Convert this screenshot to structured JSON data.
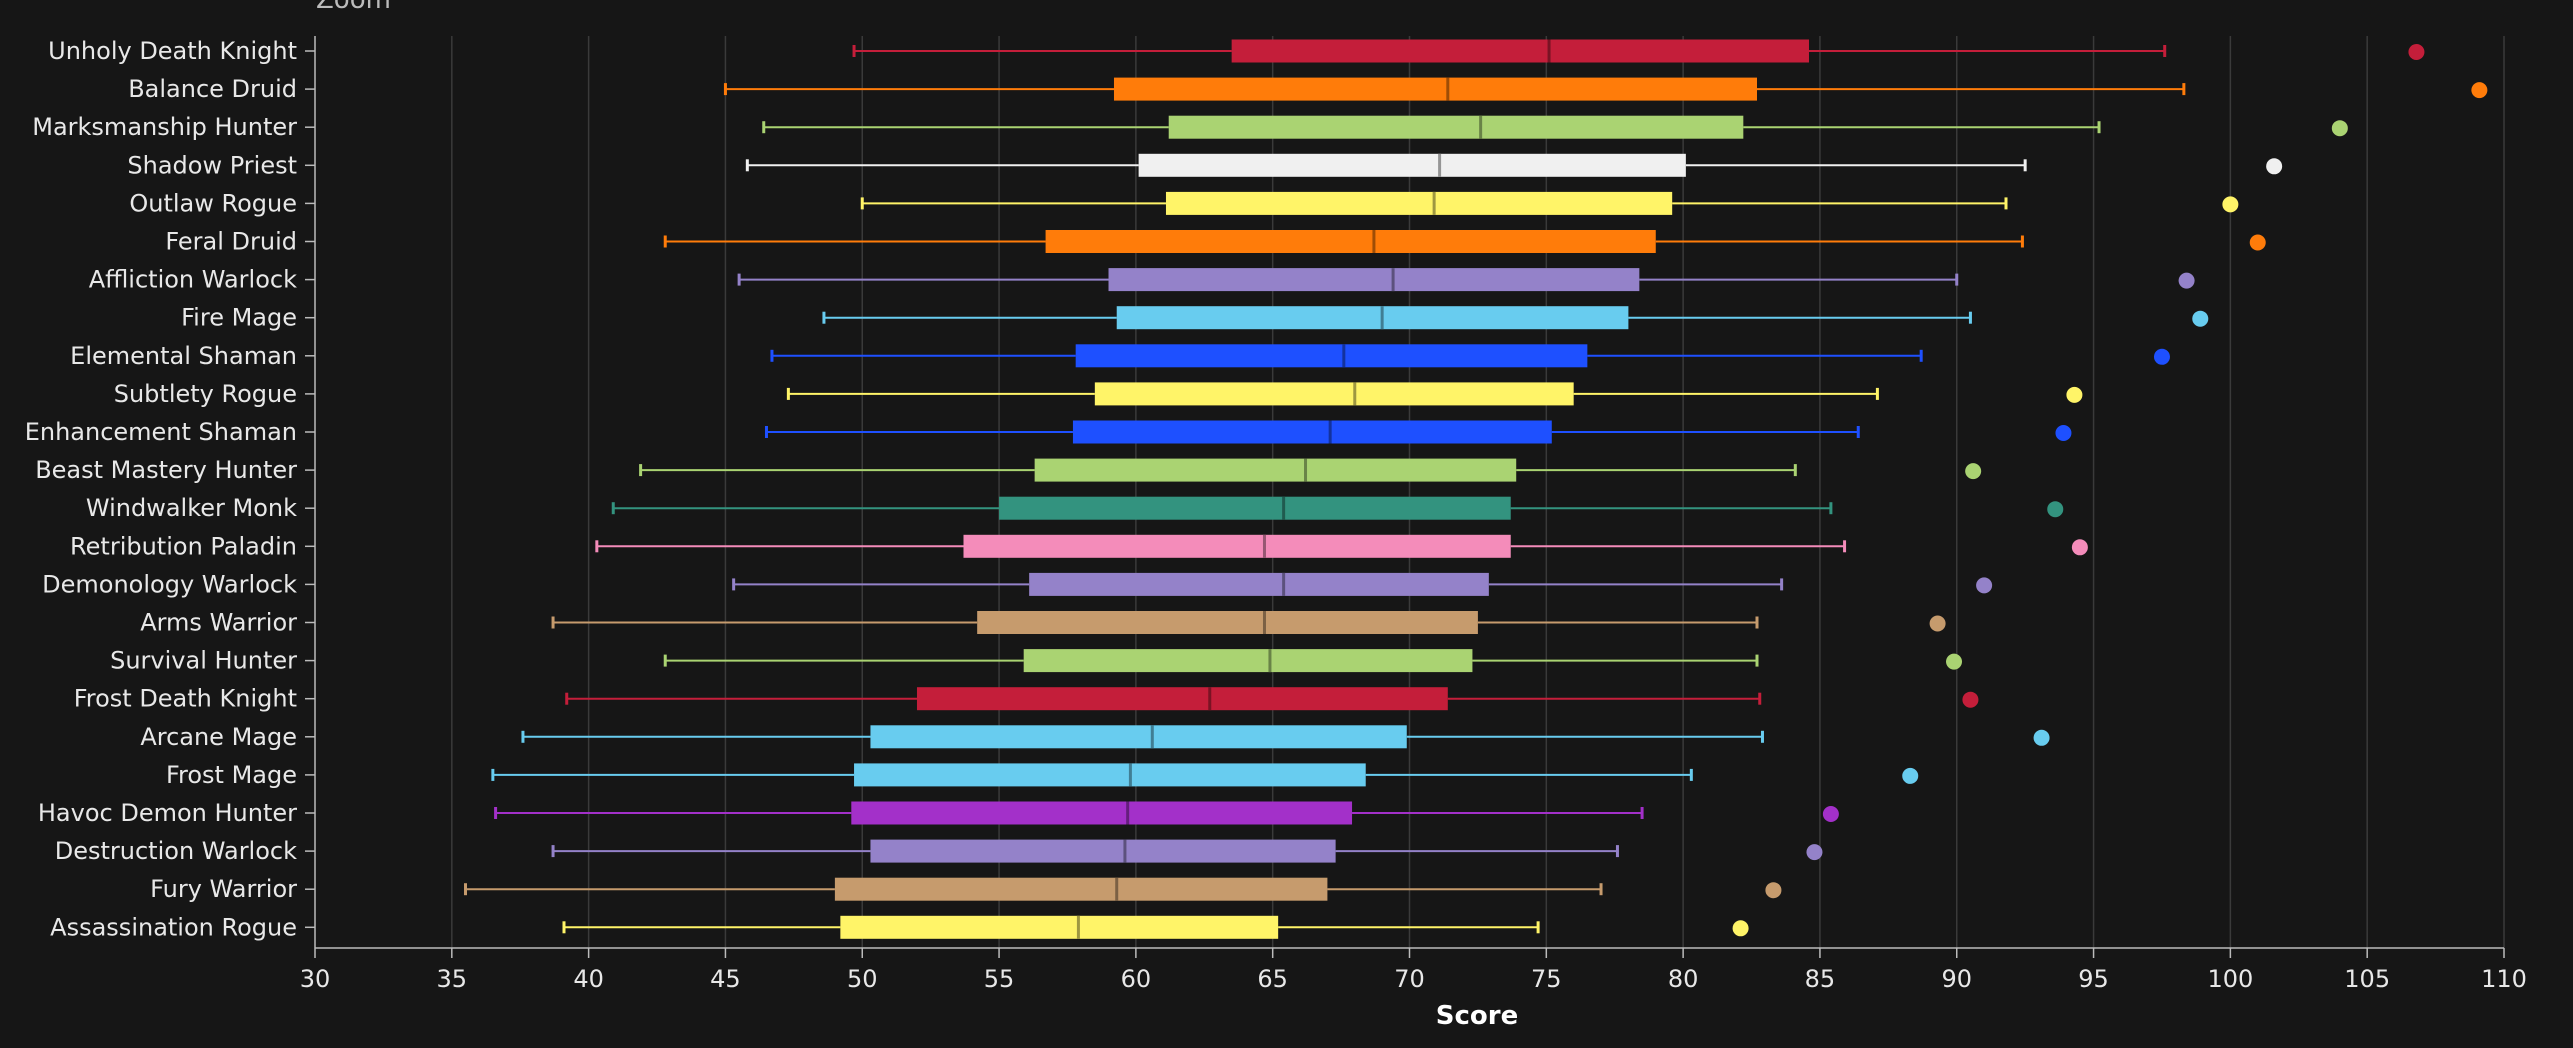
{
  "chart_data": {
    "type": "boxplot",
    "title": "",
    "zoom_label": "Zoom",
    "xlabel": "Score",
    "ylabel": "",
    "xlim": [
      30,
      110
    ],
    "xticks": [
      30,
      35,
      40,
      45,
      50,
      55,
      60,
      65,
      70,
      75,
      80,
      85,
      90,
      95,
      100,
      105,
      110
    ],
    "grid": "vertical",
    "categories": [
      {
        "name": "Unholy Death Knight",
        "color": "#c41e3a",
        "min": 49.7,
        "q1": 63.5,
        "median": 75.1,
        "q3": 84.6,
        "max": 97.6,
        "outlier": 106.8
      },
      {
        "name": "Balance Druid",
        "color": "#ff7c0a",
        "min": 45.0,
        "q1": 59.2,
        "median": 71.4,
        "q3": 82.7,
        "max": 98.3,
        "outlier": 109.1
      },
      {
        "name": "Marksmanship Hunter",
        "color": "#aad372",
        "min": 46.4,
        "q1": 61.2,
        "median": 72.6,
        "q3": 82.2,
        "max": 95.2,
        "outlier": 104.0
      },
      {
        "name": "Shadow Priest",
        "color": "#f0f0f0",
        "min": 45.8,
        "q1": 60.1,
        "median": 71.1,
        "q3": 80.1,
        "max": 92.5,
        "outlier": 101.6
      },
      {
        "name": "Outlaw Rogue",
        "color": "#fff468",
        "min": 50.0,
        "q1": 61.1,
        "median": 70.9,
        "q3": 79.6,
        "max": 91.8,
        "outlier": 100.0
      },
      {
        "name": "Feral Druid",
        "color": "#ff7c0a",
        "min": 42.8,
        "q1": 56.7,
        "median": 68.7,
        "q3": 79.0,
        "max": 92.4,
        "outlier": 101.0
      },
      {
        "name": "Affliction Warlock",
        "color": "#9482c9",
        "min": 45.5,
        "q1": 59.0,
        "median": 69.4,
        "q3": 78.4,
        "max": 90.0,
        "outlier": 98.4
      },
      {
        "name": "Fire Mage",
        "color": "#68ccef",
        "min": 48.6,
        "q1": 59.3,
        "median": 69.0,
        "q3": 78.0,
        "max": 90.5,
        "outlier": 98.9
      },
      {
        "name": "Elemental Shaman",
        "color": "#1e50ff",
        "min": 46.7,
        "q1": 57.8,
        "median": 67.6,
        "q3": 76.5,
        "max": 88.7,
        "outlier": 97.5
      },
      {
        "name": "Subtlety Rogue",
        "color": "#fff468",
        "min": 47.3,
        "q1": 58.5,
        "median": 68.0,
        "q3": 76.0,
        "max": 87.1,
        "outlier": 94.3
      },
      {
        "name": "Enhancement Shaman",
        "color": "#1e50ff",
        "min": 46.5,
        "q1": 57.7,
        "median": 67.1,
        "q3": 75.2,
        "max": 86.4,
        "outlier": 93.9
      },
      {
        "name": "Beast Mastery Hunter",
        "color": "#aad372",
        "min": 41.9,
        "q1": 56.3,
        "median": 66.2,
        "q3": 73.9,
        "max": 84.1,
        "outlier": 90.6
      },
      {
        "name": "Windwalker Monk",
        "color": "#33937f",
        "min": 40.9,
        "q1": 55.0,
        "median": 65.4,
        "q3": 73.7,
        "max": 85.4,
        "outlier": 93.6
      },
      {
        "name": "Retribution Paladin",
        "color": "#f48cba",
        "min": 40.3,
        "q1": 53.7,
        "median": 64.7,
        "q3": 73.7,
        "max": 85.9,
        "outlier": 94.5
      },
      {
        "name": "Demonology Warlock",
        "color": "#9482c9",
        "min": 45.3,
        "q1": 56.1,
        "median": 65.4,
        "q3": 72.9,
        "max": 83.6,
        "outlier": 91.0
      },
      {
        "name": "Arms Warrior",
        "color": "#c69b6d",
        "min": 38.7,
        "q1": 54.2,
        "median": 64.7,
        "q3": 72.5,
        "max": 82.7,
        "outlier": 89.3
      },
      {
        "name": "Survival Hunter",
        "color": "#aad372",
        "min": 42.8,
        "q1": 55.9,
        "median": 64.9,
        "q3": 72.3,
        "max": 82.7,
        "outlier": 89.9
      },
      {
        "name": "Frost Death Knight",
        "color": "#c41e3a",
        "min": 39.2,
        "q1": 52.0,
        "median": 62.7,
        "q3": 71.4,
        "max": 82.8,
        "outlier": 90.5
      },
      {
        "name": "Arcane Mage",
        "color": "#68ccef",
        "min": 37.6,
        "q1": 50.3,
        "median": 60.6,
        "q3": 69.9,
        "max": 82.9,
        "outlier": 93.1
      },
      {
        "name": "Frost Mage",
        "color": "#68ccef",
        "min": 36.5,
        "q1": 49.7,
        "median": 59.8,
        "q3": 68.4,
        "max": 80.3,
        "outlier": 88.3
      },
      {
        "name": "Havoc Demon Hunter",
        "color": "#a330c9",
        "min": 36.6,
        "q1": 49.6,
        "median": 59.7,
        "q3": 67.9,
        "max": 78.5,
        "outlier": 85.4
      },
      {
        "name": "Destruction Warlock",
        "color": "#9482c9",
        "min": 38.7,
        "q1": 50.3,
        "median": 59.6,
        "q3": 67.3,
        "max": 77.6,
        "outlier": 84.8
      },
      {
        "name": "Fury Warrior",
        "color": "#c69b6d",
        "min": 35.5,
        "q1": 49.0,
        "median": 59.3,
        "q3": 67.0,
        "max": 77.0,
        "outlier": 83.3
      },
      {
        "name": "Assassination Rogue",
        "color": "#fff468",
        "min": 39.1,
        "q1": 49.2,
        "median": 57.9,
        "q3": 65.2,
        "max": 74.7,
        "outlier": 82.1
      }
    ]
  }
}
